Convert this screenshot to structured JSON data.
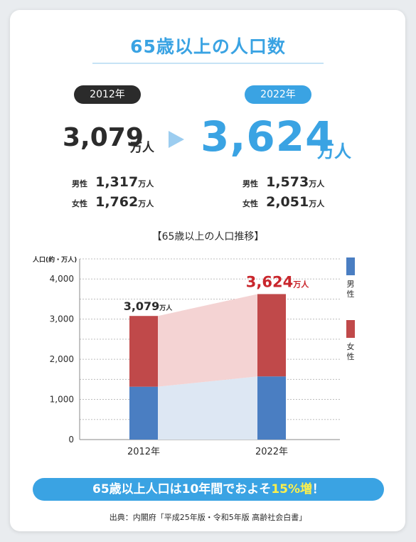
{
  "title": "65歳以上の人口数",
  "summary": {
    "left": {
      "year": "2012年",
      "total": "3,079",
      "unit": "万人",
      "male_label": "男性",
      "male_value": "1,317",
      "female_label": "女性",
      "female_value": "1,762",
      "sub_unit": "万人"
    },
    "right": {
      "year": "2022年",
      "total": "3,624",
      "unit": "万人",
      "male_label": "男性",
      "male_value": "1,573",
      "female_label": "女性",
      "female_value": "2,051",
      "sub_unit": "万人"
    }
  },
  "chart_data": {
    "type": "bar",
    "stacked": true,
    "title": "【65歳以上の人口推移】",
    "ylabel": "人口(約・万人)",
    "xlabel": "",
    "categories": [
      "2012年",
      "2022年"
    ],
    "series": [
      {
        "name": "男性",
        "values": [
          1317,
          1573
        ],
        "color": "#4a7ec2"
      },
      {
        "name": "女性",
        "values": [
          1762,
          2051
        ],
        "color": "#c0494a"
      }
    ],
    "totals": [
      3079,
      3624
    ],
    "total_labels": [
      {
        "value": "3,079",
        "unit": "万人",
        "color": "#2b2b2b"
      },
      {
        "value": "3,624",
        "unit": "万人",
        "color": "#c9262c"
      }
    ],
    "ylim": [
      0,
      4500
    ],
    "yticks": [
      0,
      1000,
      2000,
      3000,
      4000
    ],
    "ytick_labels": [
      "0",
      "1,000",
      "2,000",
      "3,000",
      "4,000"
    ],
    "grid": true,
    "legend_position": "right",
    "connector_colors": {
      "male": "#dde7f3",
      "female": "#f4d3d3"
    }
  },
  "footer": {
    "prefix": "65歳以上人口は10年間でおよそ",
    "highlight": "15%増",
    "suffix": "！"
  },
  "source": "出典：内閣府「平成25年版・令和5年版 高齢社会白書」"
}
